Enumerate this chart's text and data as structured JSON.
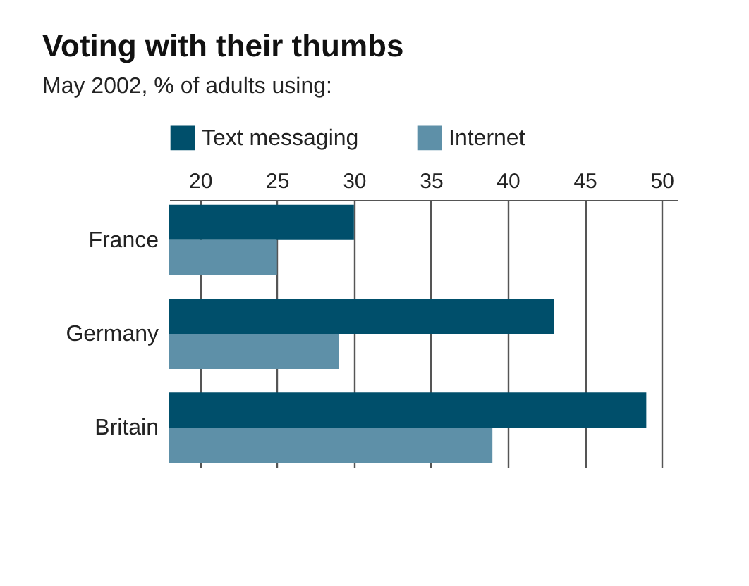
{
  "chart_data": {
    "type": "bar",
    "orientation": "horizontal",
    "title": "Voting with their thumbs",
    "subtitle": "May 2002, % of adults using:",
    "categories": [
      "France",
      "Germany",
      "Britain"
    ],
    "series": [
      {
        "name": "Text messaging",
        "color": "#004f6b",
        "values": [
          30,
          43,
          49
        ]
      },
      {
        "name": "Internet",
        "color": "#5e90a8",
        "values": [
          25,
          29,
          39
        ]
      }
    ],
    "xlim": [
      18,
      51
    ],
    "xticks": [
      20,
      25,
      30,
      35,
      40,
      45,
      50
    ],
    "grid": "x",
    "legend": "top"
  }
}
